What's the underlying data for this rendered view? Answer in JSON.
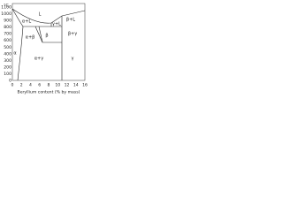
{
  "axis": {
    "y_unit": "°C",
    "y_ticks": [
      "1100",
      "1000",
      "900",
      "800",
      "700",
      "600",
      "500",
      "400",
      "300",
      "200",
      "100",
      "0"
    ],
    "x_ticks": [
      "0",
      "2",
      "4",
      "6",
      "8",
      "10",
      "12",
      "14",
      "16"
    ],
    "x_label": "Beryllium content (% by mass)"
  },
  "regions": [
    {
      "label": "L"
    },
    {
      "label": "α+L"
    },
    {
      "label": "β+L"
    },
    {
      "label": "α"
    },
    {
      "label": "β"
    },
    {
      "label": "α+β"
    },
    {
      "label": "β+γ"
    },
    {
      "label": "γ+L"
    },
    {
      "label": "α+γ"
    },
    {
      "label": "γ"
    }
  ]
}
